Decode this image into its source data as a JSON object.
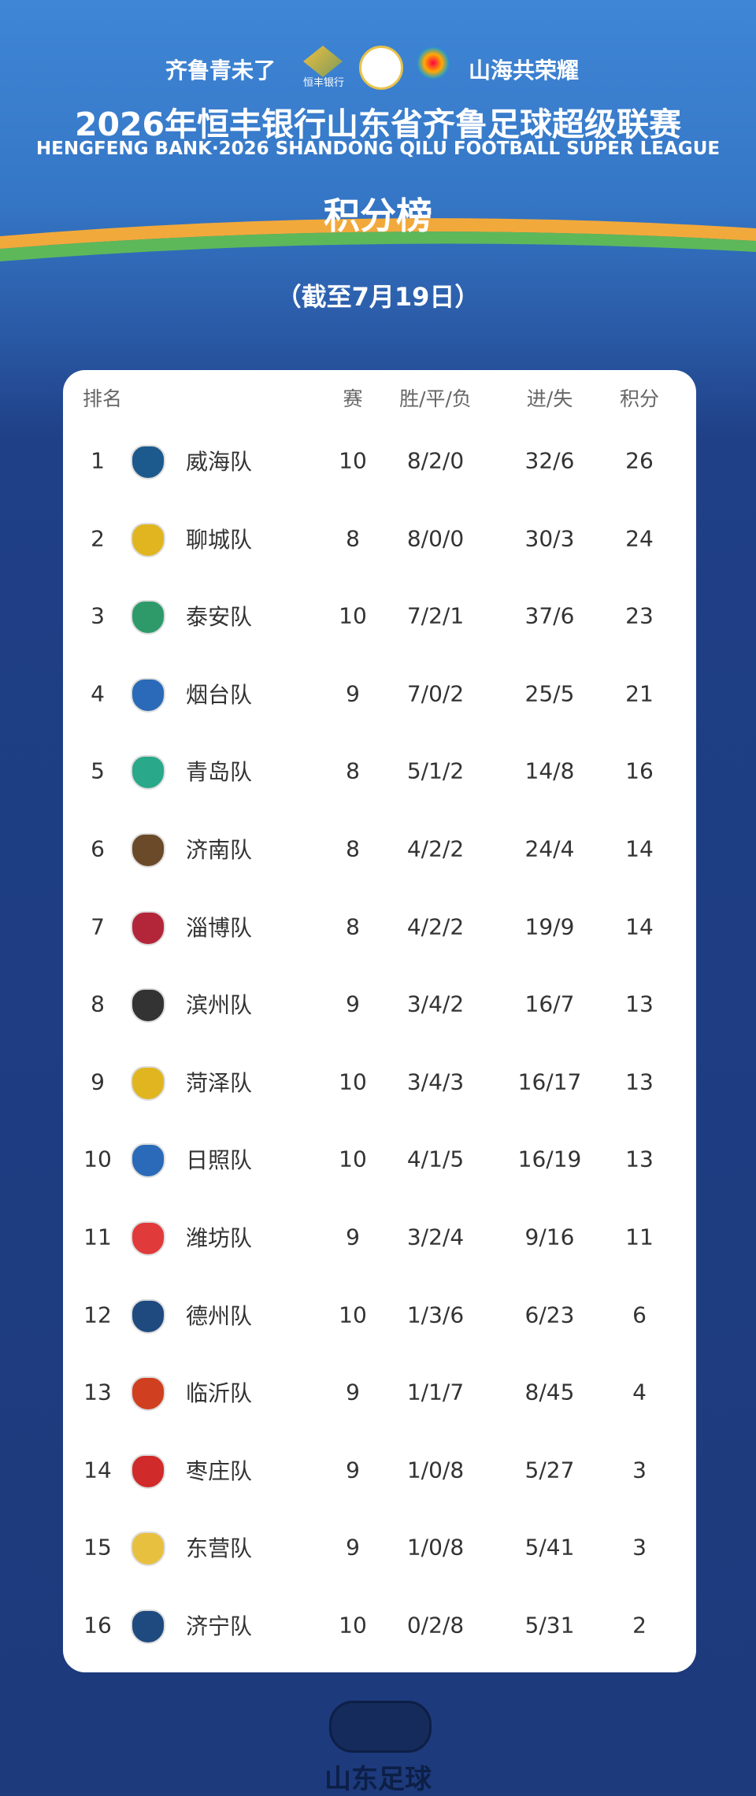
{
  "header": {
    "slogan_left": "齐鲁青未了",
    "sponsor": "恒丰银行",
    "slogan_right": "山海共荣耀",
    "title": "2026年恒丰银行山东省齐鲁足球超级联赛",
    "subtitle": "HENGFENG BANK·2026 SHANDONG QILU FOOTBALL SUPER LEAGUE",
    "heading": "积分榜",
    "date": "（截至7月19日）"
  },
  "table": {
    "columns": [
      "排名",
      "赛",
      "胜/平/负",
      "进/失",
      "积分"
    ],
    "rows": [
      [
        1,
        "威海队",
        10,
        "8/2/0",
        "32/6",
        26
      ],
      [
        2,
        "聊城队",
        8,
        "8/0/0",
        "30/3",
        24
      ],
      [
        3,
        "泰安队",
        10,
        "7/2/1",
        "37/6",
        23
      ],
      [
        4,
        "烟台队",
        9,
        "7/0/2",
        "25/5",
        21
      ],
      [
        5,
        "青岛队",
        8,
        "5/1/2",
        "14/8",
        16
      ],
      [
        6,
        "济南队",
        8,
        "4/2/2",
        "24/4",
        14
      ],
      [
        7,
        "淄博队",
        8,
        "4/2/2",
        "19/9",
        14
      ],
      [
        8,
        "滨州队",
        9,
        "3/4/2",
        "16/7",
        13
      ],
      [
        9,
        "菏泽队",
        10,
        "3/4/3",
        "16/17",
        13
      ],
      [
        10,
        "日照队",
        10,
        "4/1/5",
        "16/19",
        13
      ],
      [
        11,
        "潍坊队",
        9,
        "3/2/4",
        "9/16",
        11
      ],
      [
        12,
        "德州队",
        10,
        "1/3/6",
        "6/23",
        6
      ],
      [
        13,
        "临沂队",
        9,
        "1/1/7",
        "8/45",
        4
      ],
      [
        14,
        "枣庄队",
        9,
        "1/0/8",
        "5/27",
        3
      ],
      [
        15,
        "东营队",
        9,
        "1/0/8",
        "5/41",
        3
      ],
      [
        16,
        "济宁队",
        10,
        "0/2/8",
        "5/31",
        2
      ]
    ]
  },
  "footer": {
    "brand": "山东足球"
  }
}
